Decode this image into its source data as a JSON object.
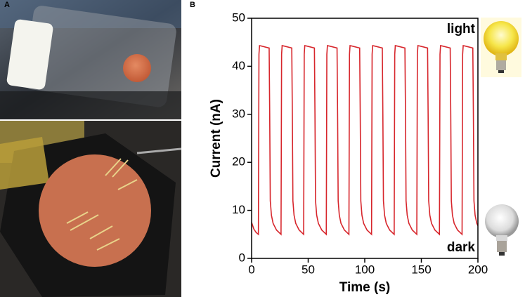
{
  "panel_labels": [
    "A",
    "B"
  ],
  "chart_data": {
    "type": "line",
    "xlabel": "Time (s)",
    "ylabel": "Current (nA)",
    "annotations": [
      "light",
      "dark"
    ],
    "color": "#d7262c",
    "xlim": [
      0,
      200
    ],
    "xticks": [
      0,
      50,
      100,
      150,
      200
    ],
    "ylim": [
      0,
      50
    ],
    "yticks": [
      0,
      10,
      20,
      30,
      40,
      50
    ],
    "x": [
      0,
      2,
      4,
      6,
      6.5,
      7,
      9,
      15.5,
      16,
      16.5,
      17.5,
      19,
      22,
      26,
      26.5,
      27,
      29,
      35.5,
      36,
      36.5,
      37.5,
      39,
      42,
      46,
      46.5,
      47,
      49,
      55.5,
      56,
      56.5,
      57.5,
      59,
      62,
      66,
      66.5,
      67,
      69,
      75.5,
      76,
      76.5,
      77.5,
      79,
      82,
      86,
      86.5,
      87,
      89,
      95.5,
      96,
      96.5,
      97.5,
      99,
      102,
      106,
      106.5,
      107,
      109,
      115.5,
      116,
      116.5,
      117.5,
      119,
      122,
      126,
      126.5,
      127,
      129,
      135.5,
      136,
      136.5,
      137.5,
      139,
      142,
      146,
      146.5,
      147,
      149,
      155.5,
      156,
      156.5,
      157.5,
      159,
      162,
      166,
      166.5,
      167,
      169,
      175.5,
      176,
      176.5,
      177.5,
      179,
      182,
      186,
      186.5,
      187,
      189,
      195.5,
      196,
      196.5,
      197.5,
      199,
      200
    ],
    "values": [
      7.5,
      6.1,
      5.4,
      5.0,
      42.5,
      44.3,
      44.2,
      43.8,
      30,
      12,
      9,
      7.3,
      5.9,
      5.0,
      42.5,
      44.3,
      44.2,
      43.8,
      30,
      12,
      9,
      7.3,
      5.9,
      5.0,
      42.5,
      44.3,
      44.2,
      43.8,
      30,
      12,
      9,
      7.3,
      5.9,
      5.0,
      42.5,
      44.3,
      44.2,
      43.8,
      30,
      12,
      9,
      7.3,
      5.9,
      5.0,
      42.5,
      44.3,
      44.2,
      43.8,
      30,
      12,
      9,
      7.3,
      5.9,
      5.0,
      42.5,
      44.3,
      44.2,
      43.8,
      30,
      12,
      9,
      7.3,
      5.9,
      5.0,
      42.5,
      44.3,
      44.2,
      43.8,
      30,
      12,
      9,
      7.3,
      5.9,
      5.0,
      42.5,
      44.3,
      44.2,
      43.8,
      30,
      12,
      9,
      7.3,
      5.9,
      5.0,
      42.5,
      44.3,
      44.2,
      43.8,
      30,
      12,
      9,
      7.3,
      5.9,
      5.0,
      42.5,
      44.3,
      44.2,
      43.8,
      30,
      12,
      9,
      7.3,
      6.8
    ]
  }
}
